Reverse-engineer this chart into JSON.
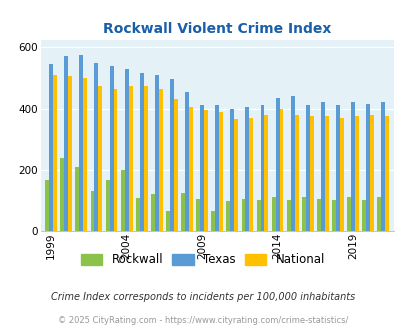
{
  "title": "Rockwall Violent Crime Index",
  "years": [
    1999,
    2000,
    2001,
    2002,
    2003,
    2004,
    2005,
    2006,
    2007,
    2008,
    2009,
    2010,
    2011,
    2012,
    2013,
    2014,
    2015,
    2016,
    2017,
    2018,
    2019,
    2020,
    2021
  ],
  "rockwall": [
    165,
    240,
    210,
    130,
    165,
    200,
    108,
    120,
    65,
    125,
    105,
    65,
    98,
    105,
    100,
    110,
    100,
    110,
    105,
    100,
    110,
    100,
    112
  ],
  "texas": [
    545,
    570,
    575,
    550,
    540,
    530,
    515,
    510,
    495,
    455,
    410,
    410,
    400,
    405,
    410,
    435,
    440,
    410,
    420,
    410,
    420,
    415,
    420
  ],
  "national": [
    510,
    505,
    500,
    475,
    465,
    475,
    475,
    465,
    430,
    405,
    395,
    390,
    365,
    370,
    380,
    400,
    380,
    375,
    375,
    370,
    375,
    380,
    375
  ],
  "xtick_labels": [
    "1999",
    "2004",
    "2009",
    "2014",
    "2019"
  ],
  "xtick_positions": [
    0,
    5,
    10,
    15,
    20
  ],
  "ylim": [
    0,
    625
  ],
  "yticks": [
    0,
    200,
    400,
    600
  ],
  "color_rockwall": "#8bc34a",
  "color_texas": "#5b9bd5",
  "color_national": "#ffc000",
  "bg_color": "#e4f2f7",
  "legend_label_rockwall": "Rockwall",
  "legend_label_texas": "Texas",
  "legend_label_national": "National",
  "note": "Crime Index corresponds to incidents per 100,000 inhabitants",
  "copyright": "© 2025 CityRating.com - https://www.cityrating.com/crime-statistics/"
}
